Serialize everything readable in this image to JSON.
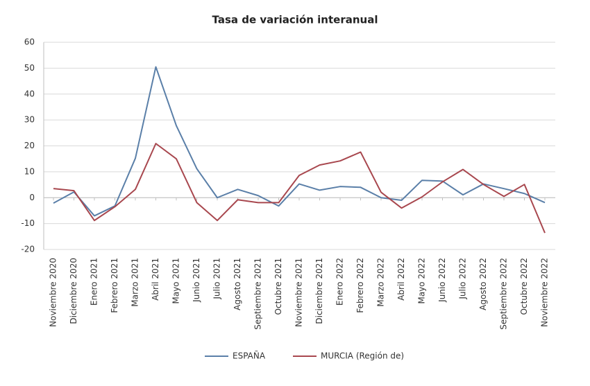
{
  "chart_data": {
    "type": "line",
    "title": "Tasa de variación interanual",
    "categories": [
      "Noviembre 2020",
      "Diciembre 2020",
      "Enero 2021",
      "Febrero 2021",
      "Marzo 2021",
      "Abril 2021",
      "Mayo 2021",
      "Junio 2021",
      "Julio 2021",
      "Agosto 2021",
      "Septiembre 2021",
      "Octubre 2021",
      "Noviembre 2021",
      "Diciembre 2021",
      "Enero 2022",
      "Febrero 2022",
      "Marzo 2022",
      "Abril 2022",
      "Mayo 2022",
      "Junio 2022",
      "Julio 2022",
      "Agosto 2022",
      "Septiembre 2022",
      "Octubre 2022",
      "Noviembre 2022"
    ],
    "series": [
      {
        "name": "ESPAÑA",
        "color": "#5a7fa8",
        "values": [
          -2.1,
          2.2,
          -7,
          -3.2,
          15.2,
          50.5,
          27.8,
          11.2,
          0,
          3.2,
          0.8,
          -3.2,
          5.3,
          2.9,
          4.3,
          4,
          0,
          -1,
          6.7,
          6.4,
          1.1,
          5.3,
          3.5,
          1.6,
          -1.9
        ]
      },
      {
        "name": "MURCIA (Región de)",
        "color": "#a8474e",
        "values": [
          3.5,
          2.7,
          -8.8,
          -3.5,
          3.2,
          20.9,
          15,
          -1.9,
          -8.8,
          -0.8,
          -1.9,
          -1.9,
          8.6,
          12.6,
          14.2,
          17.6,
          2.1,
          -4,
          0.3,
          6.1,
          10.9,
          5.1,
          0.5,
          5.1,
          -13.6
        ]
      }
    ],
    "ylim": [
      -20,
      60
    ],
    "yticks": [
      -20,
      -10,
      0,
      10,
      20,
      30,
      40,
      50,
      60
    ],
    "grid": true,
    "legend": "bottom"
  }
}
